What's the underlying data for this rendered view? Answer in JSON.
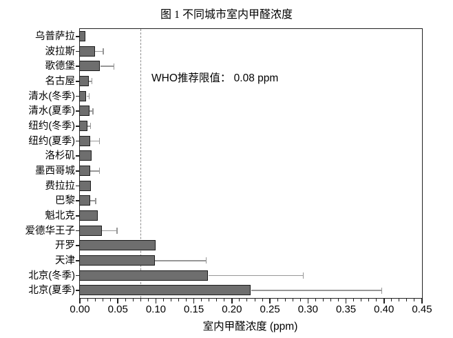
{
  "figure": {
    "title": "图 1 不同城市室内甲醛浓度"
  },
  "chart_data": {
    "type": "bar",
    "orientation": "horizontal",
    "title": "图 1 不同城市室内甲醛浓度",
    "xlabel": "室内甲醛浓度 (ppm)",
    "ylabel": "",
    "xlim": [
      0,
      0.45
    ],
    "xtick_step": 0.05,
    "minor_tick_step": 0.01,
    "xtick_labels": [
      "0.00",
      "0.05",
      "0.10",
      "0.15",
      "0.20",
      "0.25",
      "0.30",
      "0.35",
      "0.40",
      "0.45"
    ],
    "grid": false,
    "legend": null,
    "categories": [
      "乌普萨拉",
      "波拉斯",
      "歌德堡",
      "名古屋",
      "清水(冬季)",
      "清水(夏季)",
      "纽约(冬季)",
      "纽约(夏季)",
      "洛杉矶",
      "墨西哥城",
      "费拉拉",
      "巴黎",
      "魁北克",
      "爱德华王子",
      "开罗",
      "天津",
      "北京(冬季)",
      "北京(夏季)"
    ],
    "values": [
      0.008,
      0.02,
      0.027,
      0.012,
      0.009,
      0.013,
      0.01,
      0.014,
      0.016,
      0.014,
      0.015,
      0.014,
      0.024,
      0.029,
      0.1,
      0.099,
      0.169,
      0.225
    ],
    "errors_plus": [
      null,
      0.011,
      0.018,
      0.004,
      0.003,
      0.004,
      0.004,
      0.012,
      null,
      0.012,
      null,
      0.007,
      null,
      0.02,
      null,
      0.067,
      0.125,
      0.172
    ],
    "reference_line": {
      "value": 0.08,
      "style": "dashed",
      "color": "#8c8c8c"
    },
    "annotation": "WHO推荐限值： 0.08 ppm",
    "colors": {
      "bar_fill": "#6e6e6e",
      "bar_border": "#1b1b1b",
      "error_bar": "#969696",
      "axis": "#1f1f1f",
      "background": "#ffffff"
    }
  }
}
